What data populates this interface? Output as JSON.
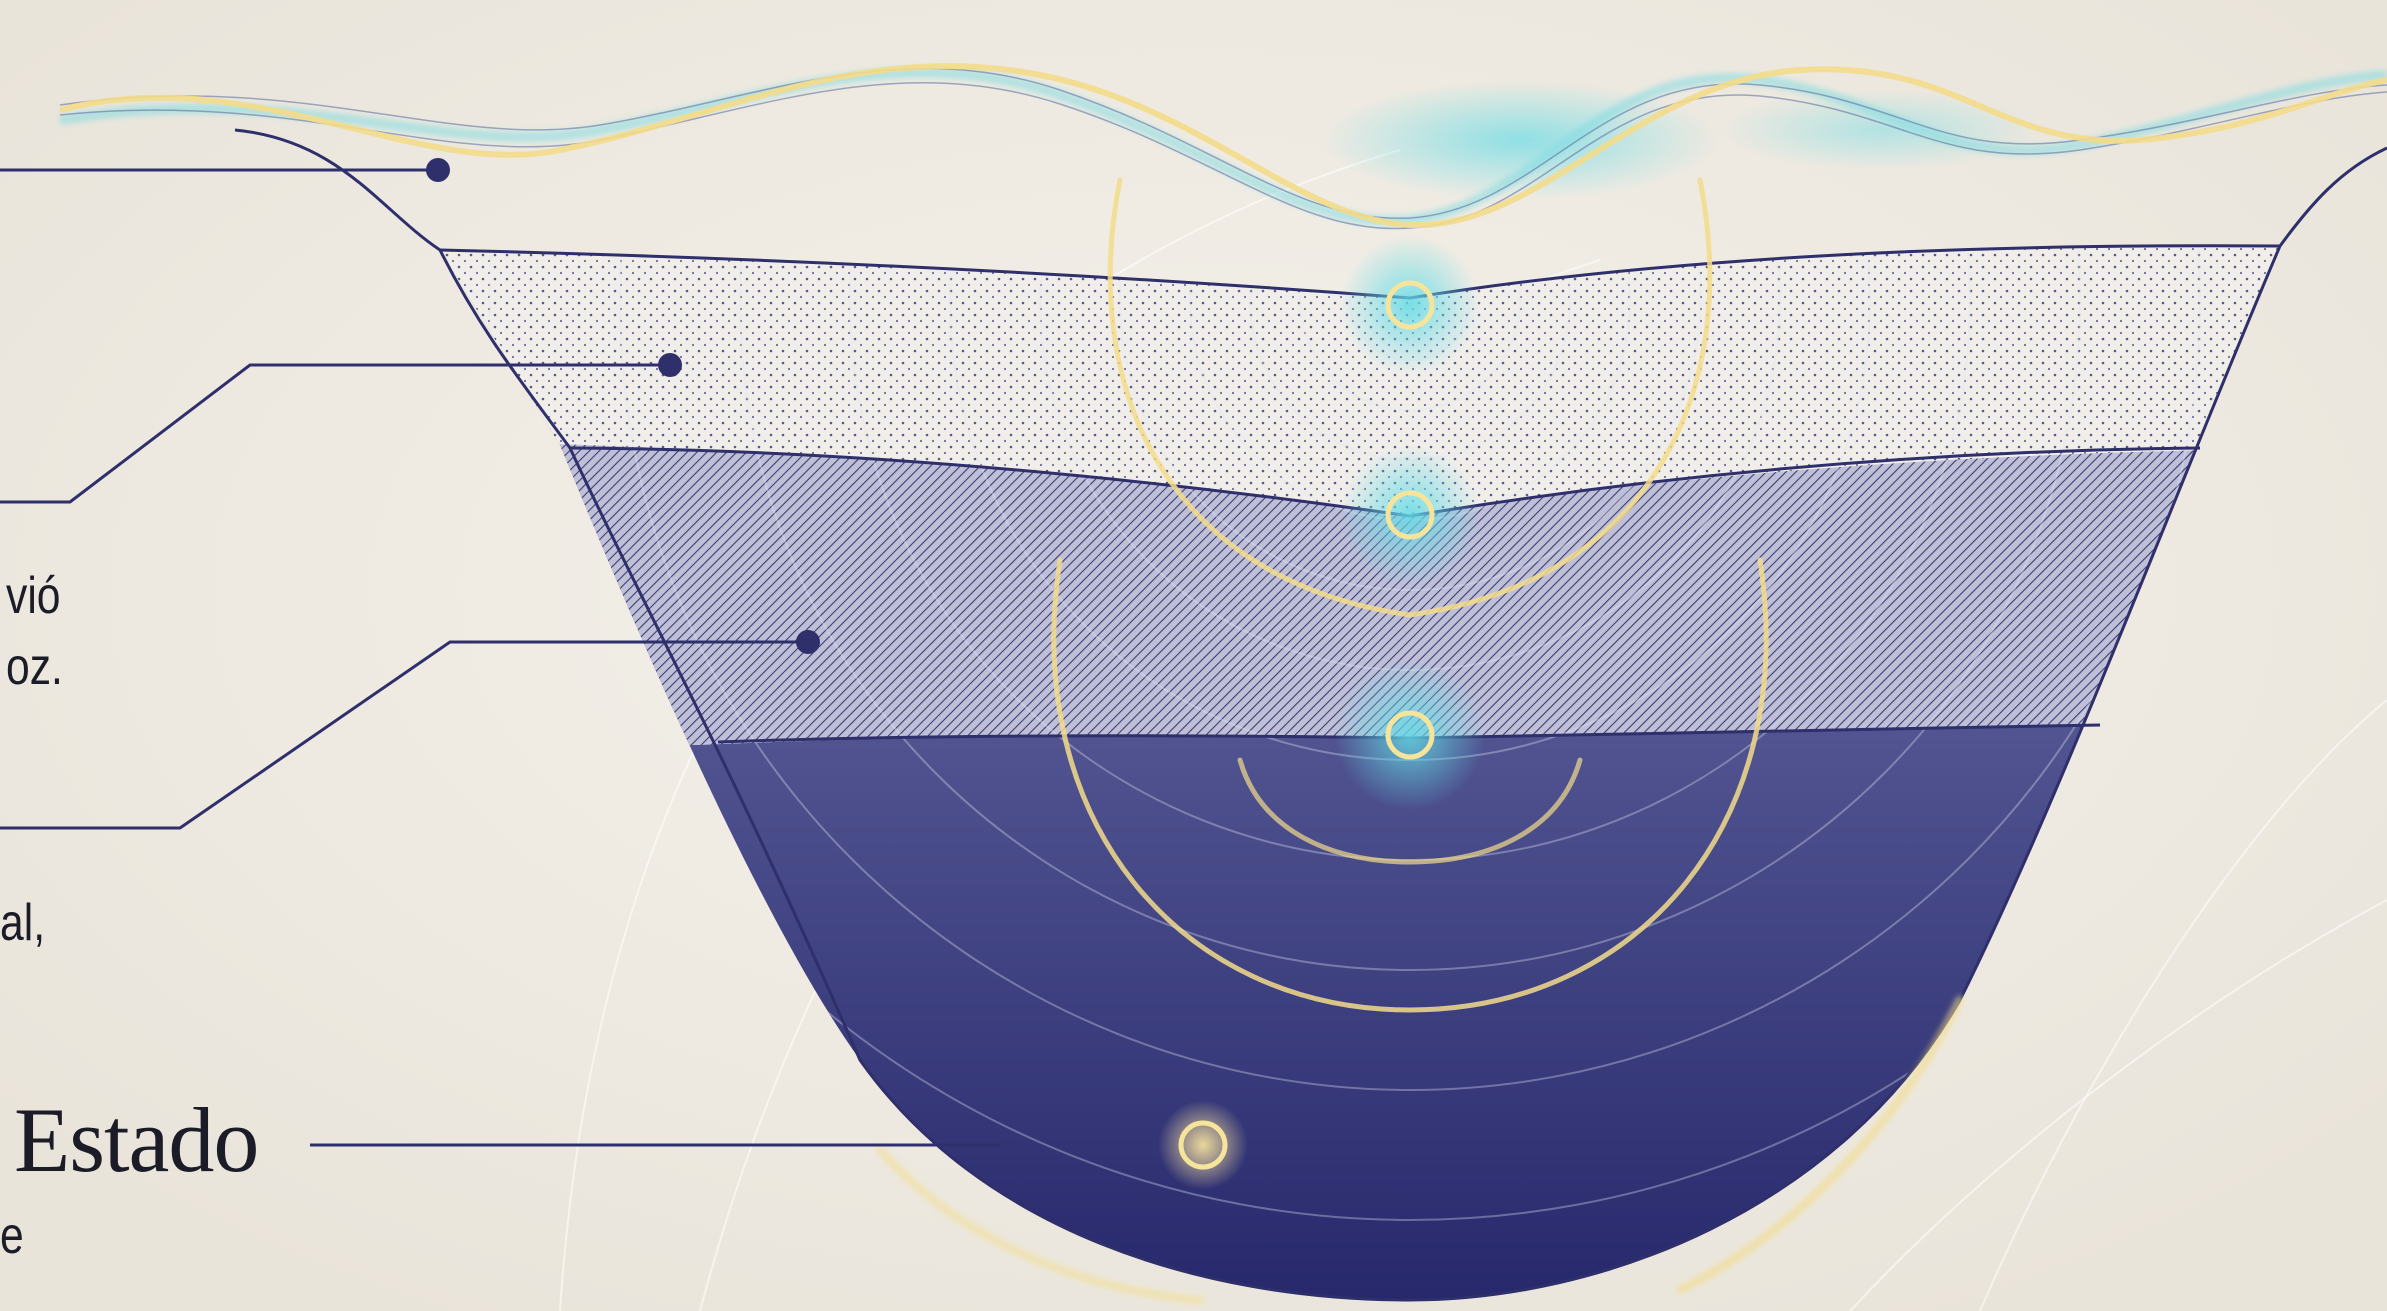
{
  "colors": {
    "background": "#efebe3",
    "ink": "#2e2f6b",
    "deep": "#27286a",
    "gold": "#f3dc8a",
    "cyan": "#5fd6e2",
    "text": "#1c1c28"
  },
  "labels": {
    "fragment_1_line1": "vió",
    "fragment_1_line2": "oz.",
    "fragment_2": "al,",
    "estado_title": "Estado",
    "fragment_3": "e"
  },
  "icons": [
    "connector-dot",
    "glowing-node",
    "wave-ribbon"
  ]
}
